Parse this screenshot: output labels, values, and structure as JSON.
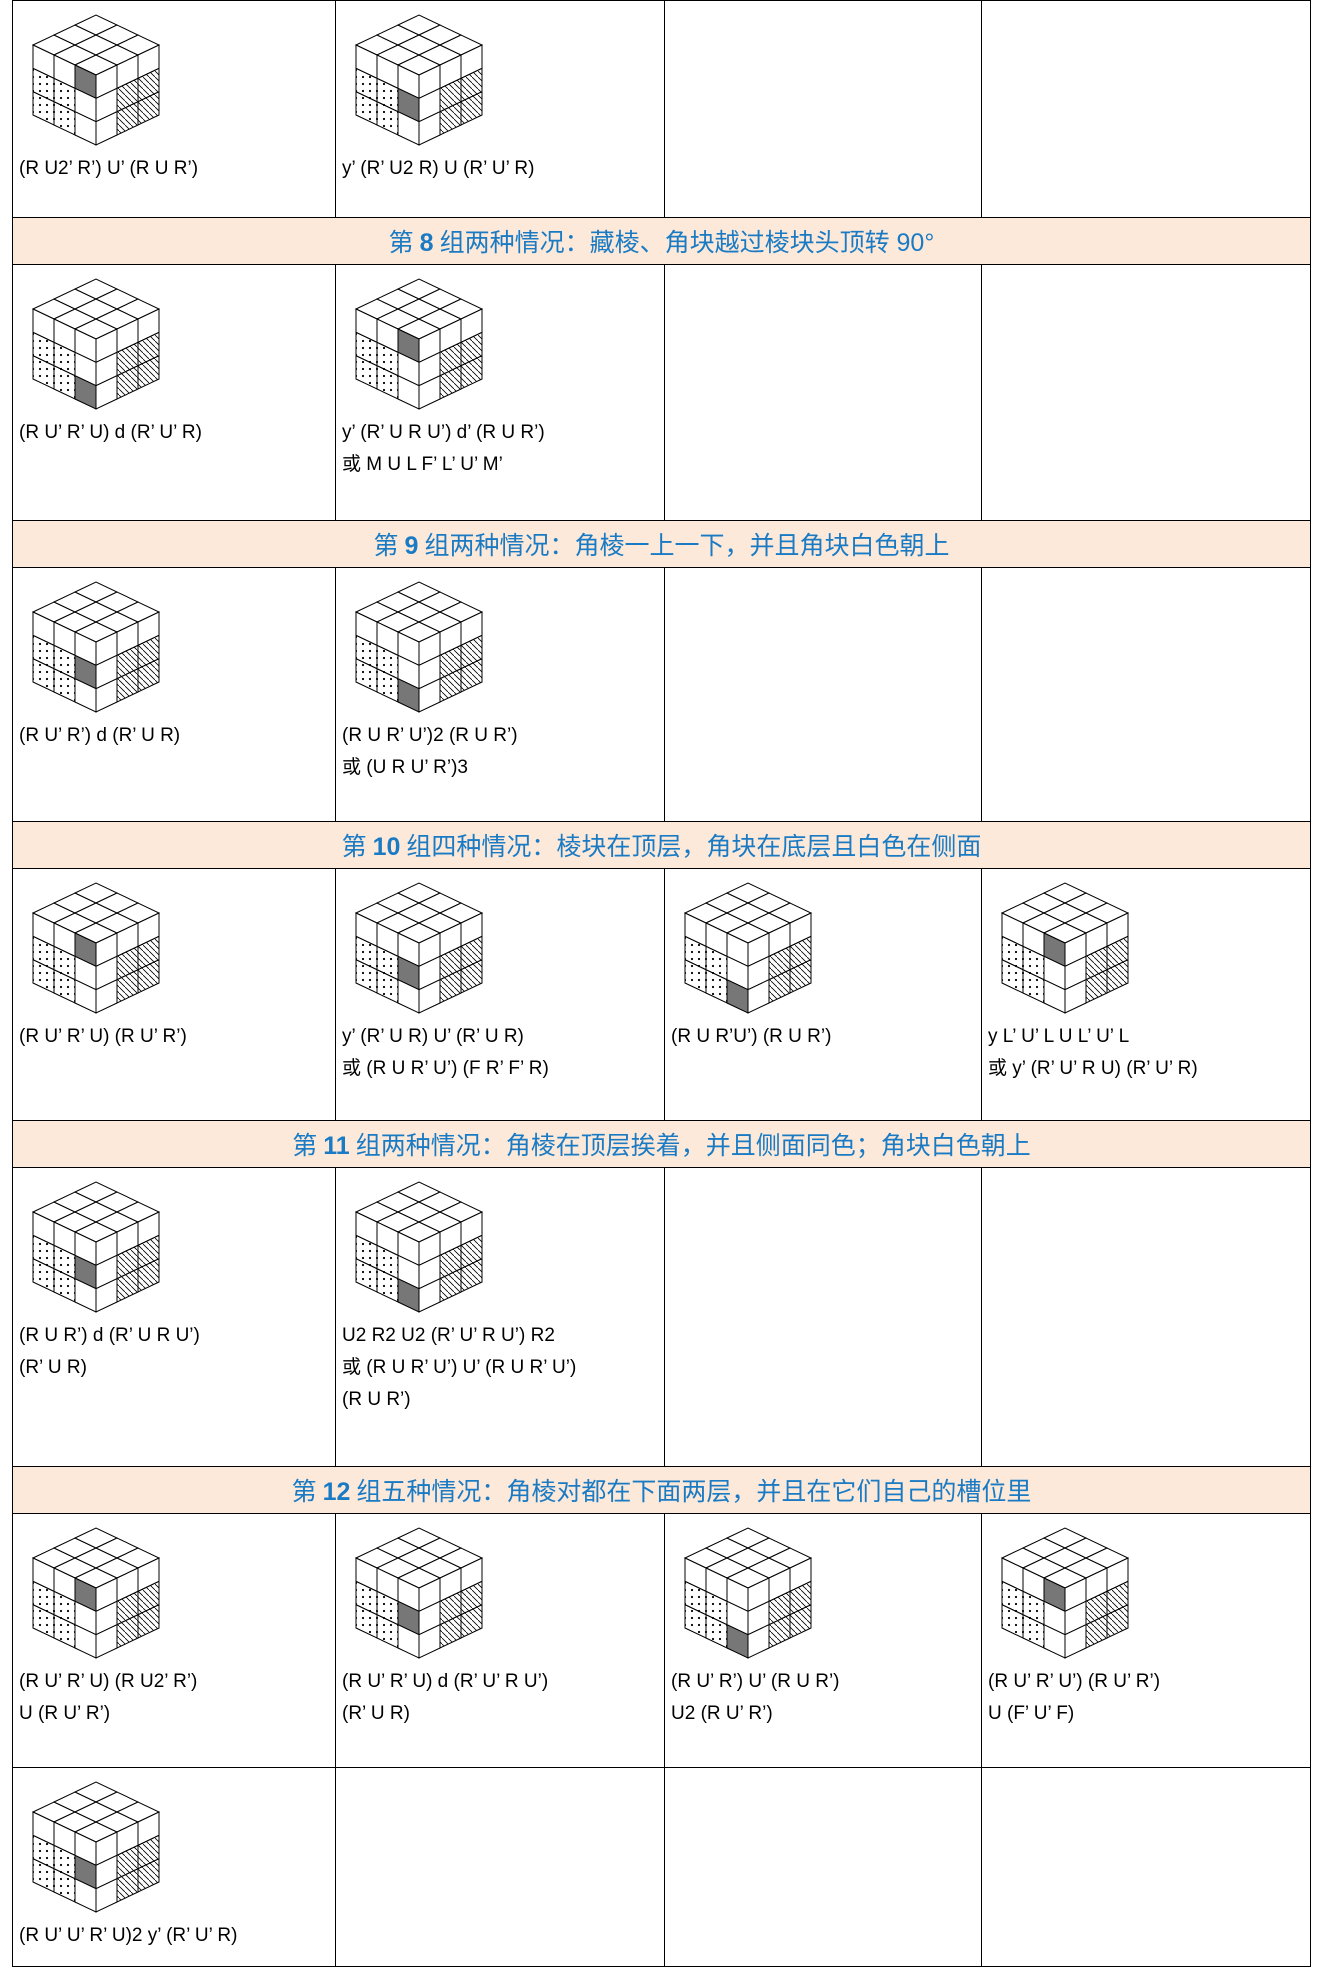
{
  "rows": [
    {
      "cells": [
        {
          "lines": [
            "(R U2’ R’) U’ (R U R’)"
          ]
        },
        {
          "lines": [
            "y’ (R’ U2 R) U (R’ U’ R)"
          ]
        },
        {
          "lines": []
        },
        {
          "lines": []
        }
      ]
    },
    {
      "header": {
        "prefix": "第",
        "number": "8",
        "text": "组两种情况：藏棱、角块越过棱块头顶转 90°"
      }
    },
    {
      "cells": [
        {
          "lines": [
            "(R U’ R’ U) d (R’ U’ R)"
          ]
        },
        {
          "lines": [
            "y’ (R’ U R U’) d’ (R U R’)",
            "或 M U L F’ L’ U’ M’"
          ]
        },
        {
          "lines": []
        },
        {
          "lines": []
        }
      ]
    },
    {
      "header": {
        "prefix": "第",
        "number": "9",
        "text": "组两种情况：角棱一上一下，并且角块白色朝上"
      }
    },
    {
      "cells": [
        {
          "lines": [
            "(R U’ R’) d (R’ U R)"
          ]
        },
        {
          "lines": [
            "(R U R’ U’)2 (R U R’)",
            "或 (U R U’ R’)3"
          ]
        },
        {
          "lines": []
        },
        {
          "lines": []
        }
      ]
    },
    {
      "header": {
        "prefix": "第",
        "number": "10",
        "text": "组四种情况：棱块在顶层，角块在底层且白色在侧面"
      }
    },
    {
      "cells": [
        {
          "lines": [
            "(R U’ R’ U) (R U’ R’)"
          ]
        },
        {
          "lines": [
            "y’ (R’ U R) U’ (R’ U R)",
            "或 (R U R’ U’) (F R’ F’ R)"
          ]
        },
        {
          "lines": [
            "(R U R’U’) (R U R’)"
          ]
        },
        {
          "lines": [
            "y L’ U’ L U L’ U’ L",
            "或 y’ (R’ U’ R U) (R’ U’ R)"
          ]
        }
      ]
    },
    {
      "header": {
        "prefix": "第",
        "number": "11",
        "text": "组两种情况：角棱在顶层挨着，并且侧面同色；角块白色朝上"
      }
    },
    {
      "cells": [
        {
          "lines": [
            "(R U R’) d (R’ U R U’)",
            "(R’ U R)"
          ]
        },
        {
          "lines": [
            "U2 R2 U2 (R’ U’ R U’) R2",
            "或 (R U R’ U’) U’ (R U R’ U’)",
            "(R U R’)"
          ]
        },
        {
          "lines": []
        },
        {
          "lines": []
        }
      ]
    },
    {
      "header": {
        "prefix": "第",
        "number": "12",
        "text": "组五种情况：角棱对都在下面两层，并且在它们自己的槽位里"
      }
    },
    {
      "cells": [
        {
          "lines": [
            "(R U’ R’ U) (R U2’ R’)",
            "U (R U’ R’)"
          ]
        },
        {
          "lines": [
            "(R U’ R’ U) d (R’ U’ R U’)",
            "(R’ U R)"
          ]
        },
        {
          "lines": [
            "(R U’ R’) U’ (R U R’)",
            "U2 (R U’ R’)"
          ]
        },
        {
          "lines": [
            "(R U’ R’ U’) (R U’ R’)",
            "U (F’ U’ F)"
          ]
        }
      ]
    },
    {
      "cells": [
        {
          "lines": [
            "(R U’ U’ R’ U)2 y’ (R’ U’ R)"
          ]
        },
        {
          "lines": []
        },
        {
          "lines": []
        },
        {
          "lines": []
        }
      ]
    }
  ]
}
